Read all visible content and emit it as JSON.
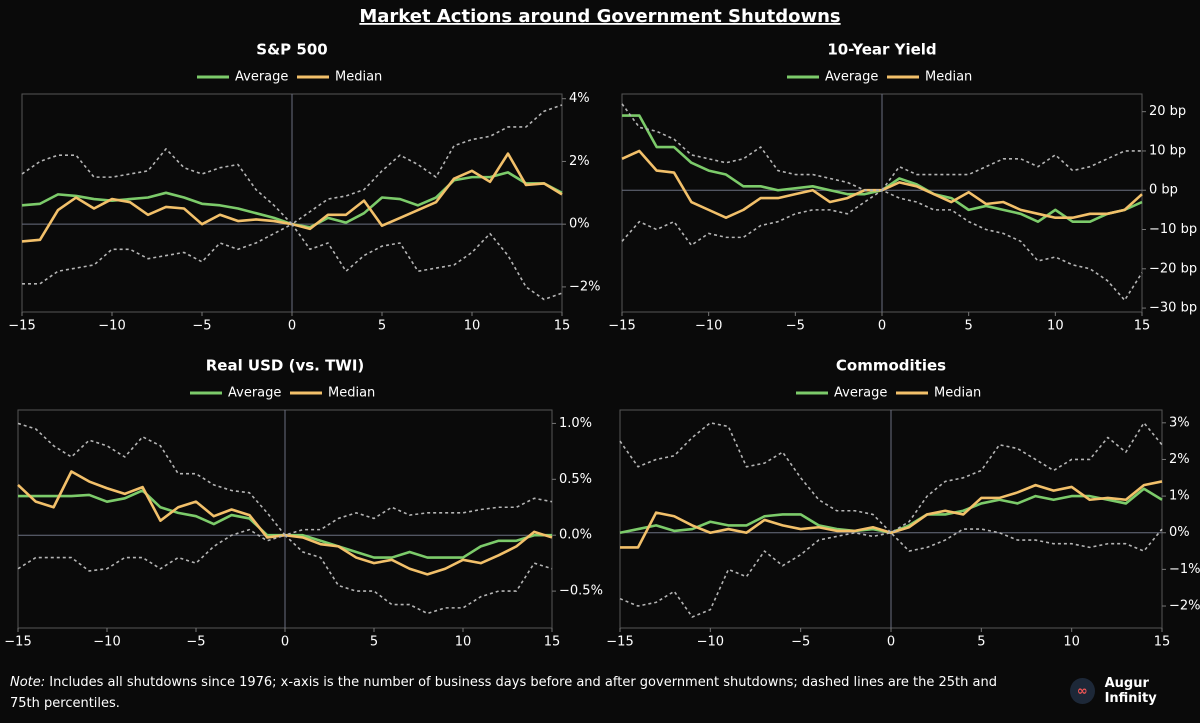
{
  "title": "Market Actions around Government Shutdowns",
  "note_label": "Note:",
  "note": "Includes all shutdowns since 1976; x-axis is the number of business days before and after government shutdowns; dashed lines are the 25th and 75th percentiles.",
  "brand": "Augur Infinity",
  "chart_data": [
    {
      "type": "line",
      "title": "S&P 500",
      "origin_lines": true,
      "x": [
        -15,
        -14,
        -13,
        -12,
        -11,
        -10,
        -9,
        -8,
        -7,
        -6,
        -5,
        -4,
        -3,
        -2,
        -1,
        0,
        1,
        2,
        3,
        4,
        5,
        6,
        7,
        8,
        9,
        10,
        11,
        12,
        13,
        14,
        15
      ],
      "xlim": [
        -15,
        15
      ],
      "xticks": [
        {
          "value": -15,
          "label": "−15"
        },
        {
          "value": -10,
          "label": "−10"
        },
        {
          "value": -5,
          "label": "−5"
        },
        0,
        5,
        10,
        15
      ],
      "ylim": [
        -2.8,
        4.15
      ],
      "yticks": [
        {
          "value": -2,
          "label": "−2%"
        },
        {
          "value": 0,
          "label": "0%"
        },
        {
          "value": 2,
          "label": "2%"
        },
        {
          "value": 4,
          "label": "4%"
        }
      ],
      "series": [
        {
          "name": "Average",
          "color": "#7ccb6a",
          "values": [
            0.6,
            0.65,
            0.95,
            0.9,
            0.8,
            0.75,
            0.8,
            0.85,
            1.0,
            0.85,
            0.65,
            0.6,
            0.5,
            0.35,
            0.2,
            0,
            -0.1,
            0.2,
            0.05,
            0.35,
            0.85,
            0.8,
            0.6,
            0.85,
            1.4,
            1.5,
            1.5,
            1.65,
            1.3,
            1.3,
            1.0
          ]
        },
        {
          "name": "Median",
          "color": "#f2c06a",
          "values": [
            -0.55,
            -0.5,
            0.45,
            0.85,
            0.5,
            0.8,
            0.7,
            0.3,
            0.55,
            0.5,
            0.0,
            0.3,
            0.1,
            0.15,
            0.1,
            0,
            -0.15,
            0.3,
            0.3,
            0.75,
            -0.05,
            0.2,
            0.45,
            0.7,
            1.45,
            1.7,
            1.35,
            2.25,
            1.25,
            1.3,
            0.95
          ]
        },
        {
          "color": "#b5b5b5",
          "dashed": true,
          "values": [
            1.6,
            2.0,
            2.2,
            2.2,
            1.5,
            1.5,
            1.6,
            1.7,
            2.4,
            1.8,
            1.6,
            1.8,
            1.9,
            1.1,
            0.6,
            0,
            0.4,
            0.8,
            0.9,
            1.1,
            1.7,
            2.2,
            1.9,
            1.5,
            2.5,
            2.7,
            2.8,
            3.1,
            3.1,
            3.6,
            3.8
          ]
        },
        {
          "color": "#b5b5b5",
          "dashed": true,
          "values": [
            -1.9,
            -1.9,
            -1.5,
            -1.4,
            -1.3,
            -0.8,
            -0.8,
            -1.1,
            -1.0,
            -0.9,
            -1.2,
            -0.6,
            -0.8,
            -0.6,
            -0.3,
            0,
            -0.8,
            -0.6,
            -1.5,
            -1.0,
            -0.7,
            -0.6,
            -1.5,
            -1.4,
            -1.3,
            -0.9,
            -0.3,
            -1.0,
            -2.0,
            -2.4,
            -2.2
          ]
        }
      ]
    },
    {
      "type": "line",
      "title": "10-Year Yield",
      "origin_lines": true,
      "x": [
        -15,
        -14,
        -13,
        -12,
        -11,
        -10,
        -9,
        -8,
        -7,
        -6,
        -5,
        -4,
        -3,
        -2,
        -1,
        0,
        1,
        2,
        3,
        4,
        5,
        6,
        7,
        8,
        9,
        10,
        11,
        12,
        13,
        14,
        15
      ],
      "xlim": [
        -15,
        15
      ],
      "xticks": [
        {
          "value": -15,
          "label": "−15"
        },
        {
          "value": -10,
          "label": "−10"
        },
        {
          "value": -5,
          "label": "−5"
        },
        0,
        5,
        10,
        15
      ],
      "ylim": [
        -31,
        24.5
      ],
      "yticks": [
        {
          "value": -30,
          "label": "−30 bp"
        },
        {
          "value": -20,
          "label": "−20 bp"
        },
        {
          "value": -10,
          "label": "−10 bp"
        },
        {
          "value": 0,
          "label": "0 bp"
        },
        {
          "value": 10,
          "label": "10 bp"
        },
        {
          "value": 20,
          "label": "20 bp"
        }
      ],
      "series": [
        {
          "name": "Average",
          "color": "#7ccb6a",
          "values": [
            19,
            19,
            11,
            11,
            7,
            5,
            4,
            1,
            1,
            0,
            0.5,
            1,
            0,
            -1,
            -1,
            0,
            3,
            1.5,
            -1,
            -2,
            -5,
            -4,
            -5,
            -6,
            -8,
            -5,
            -8,
            -8,
            -6,
            -5,
            -3
          ]
        },
        {
          "name": "Median",
          "color": "#f2c06a",
          "values": [
            8,
            10,
            5,
            4.5,
            -3,
            -5,
            -7,
            -5,
            -2,
            -2,
            -1,
            0,
            -3,
            -2,
            0,
            0,
            2,
            1,
            -1,
            -3,
            -0.5,
            -3.5,
            -3,
            -5,
            -6,
            -7,
            -7,
            -6,
            -6,
            -5,
            -1
          ]
        },
        {
          "color": "#b5b5b5",
          "dashed": true,
          "values": [
            22,
            16,
            15,
            13,
            9,
            8,
            7,
            8,
            11,
            5,
            4,
            4,
            3,
            2,
            0,
            0,
            6,
            4,
            4,
            4,
            4,
            6,
            8,
            8,
            6,
            9,
            5,
            6,
            8,
            10,
            10
          ]
        },
        {
          "color": "#b5b5b5",
          "dashed": true,
          "values": [
            -13,
            -8,
            -10,
            -8,
            -14,
            -11,
            -12,
            -12,
            -9,
            -8,
            -6,
            -5,
            -5,
            -6,
            -3,
            0,
            -2,
            -3,
            -5,
            -5,
            -8,
            -10,
            -11,
            -13,
            -18,
            -17,
            -19,
            -20,
            -23,
            -28,
            -21
          ]
        }
      ]
    },
    {
      "type": "line",
      "title": "Real USD (vs. TWI)",
      "origin_lines": true,
      "x": [
        -15,
        -14,
        -13,
        -12,
        -11,
        -10,
        -9,
        -8,
        -7,
        -6,
        -5,
        -4,
        -3,
        -2,
        -1,
        0,
        1,
        2,
        3,
        4,
        5,
        6,
        7,
        8,
        9,
        10,
        11,
        12,
        13,
        14,
        15
      ],
      "xlim": [
        -15,
        15
      ],
      "xticks": [
        {
          "value": -15,
          "label": "−15"
        },
        {
          "value": -10,
          "label": "−10"
        },
        {
          "value": -5,
          "label": "−5"
        },
        0,
        5,
        10,
        15
      ],
      "ylim": [
        -0.83,
        1.12
      ],
      "yticks": [
        {
          "value": -0.5,
          "label": "−0.5%"
        },
        {
          "value": 0,
          "label": "0.0%"
        },
        {
          "value": 0.5,
          "label": "0.5%"
        },
        {
          "value": 1,
          "label": "1.0%"
        }
      ],
      "series": [
        {
          "name": "Average",
          "color": "#7ccb6a",
          "values": [
            0.35,
            0.35,
            0.35,
            0.35,
            0.36,
            0.3,
            0.33,
            0.4,
            0.25,
            0.2,
            0.17,
            0.1,
            0.18,
            0.15,
            0.0,
            0,
            0.0,
            -0.05,
            -0.1,
            -0.15,
            -0.2,
            -0.2,
            -0.15,
            -0.2,
            -0.2,
            -0.2,
            -0.1,
            -0.05,
            -0.05,
            0.0,
            0.0
          ]
        },
        {
          "name": "Median",
          "color": "#f2c06a",
          "values": [
            0.45,
            0.3,
            0.25,
            0.57,
            0.48,
            0.42,
            0.37,
            0.43,
            0.13,
            0.25,
            0.3,
            0.17,
            0.23,
            0.18,
            -0.02,
            0,
            -0.02,
            -0.08,
            -0.1,
            -0.2,
            -0.25,
            -0.22,
            -0.3,
            -0.35,
            -0.3,
            -0.22,
            -0.25,
            -0.18,
            -0.1,
            0.03,
            -0.02
          ]
        },
        {
          "color": "#b5b5b5",
          "dashed": true,
          "values": [
            1.0,
            0.95,
            0.8,
            0.7,
            0.85,
            0.8,
            0.7,
            0.88,
            0.8,
            0.55,
            0.55,
            0.45,
            0.4,
            0.38,
            0.2,
            0,
            0.05,
            0.05,
            0.15,
            0.2,
            0.15,
            0.25,
            0.18,
            0.2,
            0.2,
            0.2,
            0.23,
            0.25,
            0.25,
            0.33,
            0.3
          ]
        },
        {
          "color": "#b5b5b5",
          "dashed": true,
          "values": [
            -0.3,
            -0.2,
            -0.2,
            -0.2,
            -0.32,
            -0.3,
            -0.2,
            -0.2,
            -0.3,
            -0.2,
            -0.25,
            -0.1,
            0.0,
            0.05,
            -0.05,
            0,
            -0.15,
            -0.2,
            -0.45,
            -0.5,
            -0.5,
            -0.62,
            -0.62,
            -0.7,
            -0.65,
            -0.65,
            -0.55,
            -0.5,
            -0.5,
            -0.25,
            -0.3
          ]
        }
      ]
    },
    {
      "type": "line",
      "title": "Commodities",
      "origin_lines": true,
      "x": [
        -15,
        -14,
        -13,
        -12,
        -11,
        -10,
        -9,
        -8,
        -7,
        -6,
        -5,
        -4,
        -3,
        -2,
        -1,
        0,
        1,
        2,
        3,
        4,
        5,
        6,
        7,
        8,
        9,
        10,
        11,
        12,
        13,
        14,
        15
      ],
      "xlim": [
        -15,
        15
      ],
      "xticks": [
        {
          "value": -15,
          "label": "−15"
        },
        {
          "value": -10,
          "label": "−10"
        },
        {
          "value": -5,
          "label": "−5"
        },
        0,
        5,
        10,
        15
      ],
      "ylim": [
        -2.6,
        3.35
      ],
      "yticks": [
        {
          "value": -2,
          "label": "−2%"
        },
        {
          "value": -1,
          "label": "−1%"
        },
        {
          "value": 0,
          "label": "0%"
        },
        {
          "value": 1,
          "label": "1%"
        },
        {
          "value": 2,
          "label": "2%"
        },
        {
          "value": 3,
          "label": "3%"
        }
      ],
      "series": [
        {
          "name": "Average",
          "color": "#7ccb6a",
          "values": [
            0.0,
            0.1,
            0.2,
            0.05,
            0.1,
            0.3,
            0.2,
            0.2,
            0.45,
            0.5,
            0.5,
            0.2,
            0.1,
            0.05,
            0.1,
            0,
            0.2,
            0.5,
            0.5,
            0.6,
            0.8,
            0.9,
            0.8,
            1.0,
            0.9,
            1.0,
            1.0,
            0.9,
            0.8,
            1.2,
            0.9
          ]
        },
        {
          "name": "Median",
          "color": "#f2c06a",
          "values": [
            -0.4,
            -0.4,
            0.55,
            0.45,
            0.2,
            0.0,
            0.1,
            0.0,
            0.35,
            0.2,
            0.1,
            0.15,
            0.05,
            0.05,
            0.15,
            0,
            0.15,
            0.5,
            0.6,
            0.5,
            0.95,
            0.95,
            1.1,
            1.3,
            1.15,
            1.25,
            0.9,
            0.95,
            0.9,
            1.3,
            1.4
          ]
        },
        {
          "color": "#b5b5b5",
          "dashed": true,
          "values": [
            2.5,
            1.8,
            2.0,
            2.1,
            2.6,
            3.0,
            2.9,
            1.8,
            1.9,
            2.2,
            1.5,
            0.9,
            0.6,
            0.6,
            0.5,
            0,
            0.3,
            1.0,
            1.4,
            1.5,
            1.7,
            2.4,
            2.3,
            2.0,
            1.7,
            2.0,
            2.0,
            2.6,
            2.2,
            3.0,
            2.4
          ]
        },
        {
          "color": "#b5b5b5",
          "dashed": true,
          "values": [
            -1.8,
            -2.0,
            -1.9,
            -1.6,
            -2.3,
            -2.1,
            -1.0,
            -1.2,
            -0.5,
            -0.9,
            -0.6,
            -0.2,
            -0.1,
            0.0,
            -0.1,
            0,
            -0.5,
            -0.4,
            -0.2,
            0.1,
            0.1,
            0.0,
            -0.2,
            -0.2,
            -0.3,
            -0.3,
            -0.4,
            -0.3,
            -0.3,
            -0.5,
            0.1
          ]
        }
      ]
    }
  ]
}
